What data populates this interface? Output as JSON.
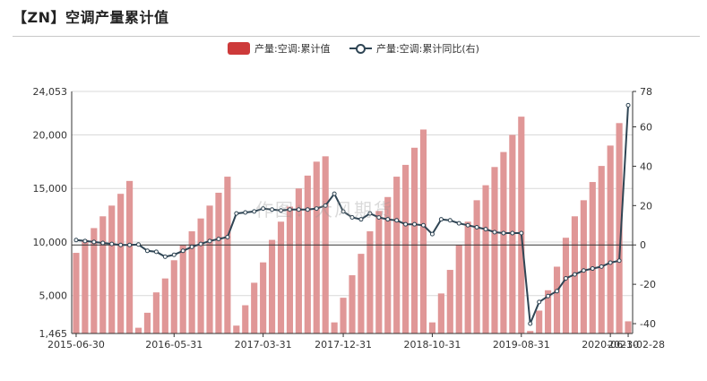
{
  "title": "【ZN】空调产量累计值",
  "watermark": "作图：大风期货",
  "colors": {
    "bar": "#cd3a3a",
    "bar_fill": "#e09797",
    "line": "#2f4554"
  },
  "legend": [
    {
      "label": "产量:空调:累计值",
      "kind": "bar"
    },
    {
      "label": "产量:空调:累计同比(右)",
      "kind": "line"
    }
  ],
  "chart_data": {
    "type": "bar",
    "x_tick_labels": [
      "2015-06-30",
      "2016-05-31",
      "2017-03-31",
      "2017-12-31",
      "2018-10-31",
      "2019-08-31",
      "2020-06-30",
      "2021-02-28"
    ],
    "y_axis_left": {
      "range": [
        1465,
        24053
      ],
      "ticks": [
        1465,
        5000,
        10000,
        15000,
        20000,
        24053
      ],
      "tick_labels": [
        "1,465",
        "5,000",
        "10,000",
        "15,000",
        "20,000",
        "24,053"
      ]
    },
    "y_axis_right": {
      "range": [
        -45,
        78
      ],
      "ticks": [
        -40,
        -20,
        0,
        20,
        40,
        60,
        78
      ]
    },
    "grid": true,
    "legend_position": "top-center",
    "series": [
      {
        "name": "产量:空调:累计值",
        "type": "bar",
        "axis": "left",
        "values": [
          8990,
          10200,
          11300,
          12400,
          13400,
          14500,
          15700,
          2000,
          3400,
          5300,
          6600,
          8300,
          9700,
          11000,
          12200,
          13400,
          14600,
          16100,
          2200,
          4100,
          6200,
          8100,
          10200,
          11900,
          13300,
          15000,
          16200,
          17500,
          18000,
          2500,
          4800,
          6900,
          8900,
          11000,
          12900,
          14200,
          16100,
          17200,
          18800,
          20500,
          2500,
          5200,
          7400,
          9700,
          11900,
          13900,
          15300,
          17000,
          18400,
          20000,
          21700,
          1700,
          3600,
          5500,
          7700,
          10400,
          12400,
          13900,
          15600,
          17100,
          19000,
          21100,
          2600
        ],
        "value_hints": "first bar 2015-06-30; last bar 2021-02-28"
      },
      {
        "name": "产量:空调:累计同比(右)",
        "type": "line",
        "axis": "right",
        "values": [
          2.5,
          2.0,
          1.5,
          1.0,
          0.5,
          0.0,
          0.0,
          0.2,
          -3.0,
          -3.5,
          -6.0,
          -5.0,
          -3.0,
          -1.0,
          0.5,
          2.0,
          3.0,
          4.0,
          16.0,
          16.5,
          17.0,
          18.5,
          18.0,
          17.5,
          18.0,
          18.0,
          18.0,
          18.5,
          20.0,
          26.0,
          17.0,
          14.0,
          13.0,
          16.0,
          14.0,
          13.0,
          12.5,
          10.5,
          10.5,
          10.0,
          5.5,
          13.0,
          12.5,
          11.0,
          10.0,
          9.0,
          8.0,
          6.5,
          6.0,
          6.0,
          6.0,
          -40.0,
          -29.0,
          -26.0,
          -23.5,
          -17.0,
          -15.0,
          -13.0,
          -12.0,
          -11.0,
          -9.0,
          -8.0,
          71.0
        ]
      }
    ]
  }
}
